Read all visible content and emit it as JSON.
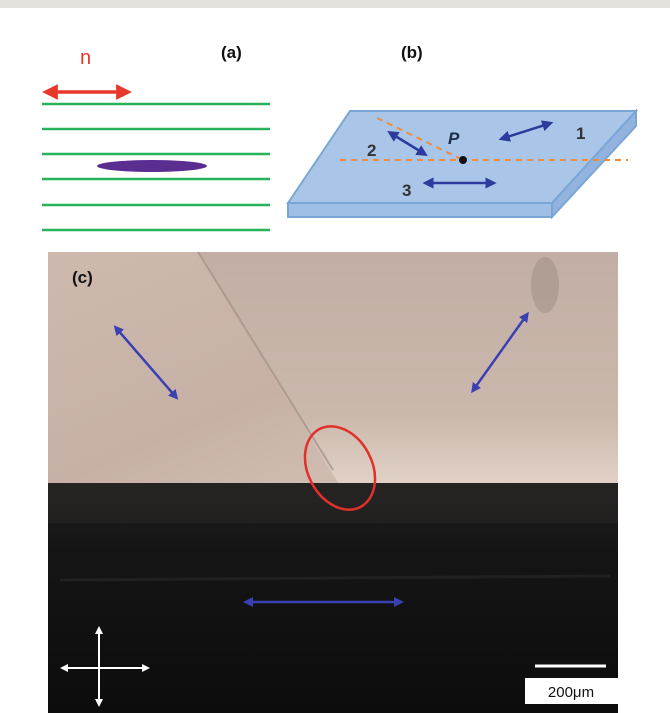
{
  "panel_a": {
    "label": "(a)",
    "director_label": "n"
  },
  "panel_b": {
    "label": "(b)",
    "point_label": "P",
    "region_labels": [
      "1",
      "2",
      "3"
    ]
  },
  "panel_c": {
    "label": "(c)",
    "scale_bar_label": "200μm"
  },
  "colors": {
    "director_arrow": "#e8382b",
    "layer_lines": "#28b35a",
    "molecule": "#5a2d91",
    "slab_top": "#a9c6e8",
    "slab_edge": "#7aa6d6",
    "defect_lines": "#f08a3c",
    "polarization_arrows": "#2d3a9e",
    "defect_circle": "#e0302a",
    "micrograph_light": "#c8b4a9",
    "micrograph_dark": "#141414"
  }
}
